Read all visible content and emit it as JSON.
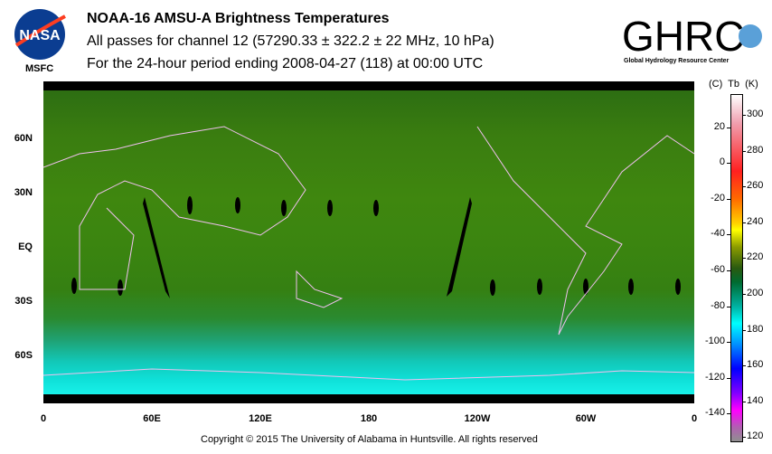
{
  "header": {
    "title": "NOAA-16 AMSU-A Brightness Temperatures",
    "subtitle": "All passes for channel 12 (57290.33 ± 322.2 ± 22 MHz, 10 hPa)",
    "period": "For the 24-hour period ending 2008-04-27 (118) at 00:00 UTC"
  },
  "logos": {
    "nasa": "NASA",
    "msfc": "MSFC",
    "ghrc": "GHRC",
    "ghrc_sub": "Global Hydrology Resource Center"
  },
  "map": {
    "lat_labels": [
      "60N",
      "30N",
      "EQ",
      "30S",
      "60S"
    ],
    "lon_labels": [
      "0",
      "60E",
      "120E",
      "180",
      "120W",
      "60W",
      "0"
    ]
  },
  "colorbar": {
    "header": "(C)  Tb  (K)",
    "celsius": [
      "20",
      "0",
      "-20",
      "-40",
      "-60",
      "-80",
      "-100",
      "-120",
      "-140"
    ],
    "kelvin": [
      "300",
      "280",
      "260",
      "240",
      "220",
      "200",
      "180",
      "160",
      "140",
      "120"
    ]
  },
  "footer": {
    "copyright": "Copyright © 2015 The University of Alabama in Huntsville.  All rights reserved"
  }
}
